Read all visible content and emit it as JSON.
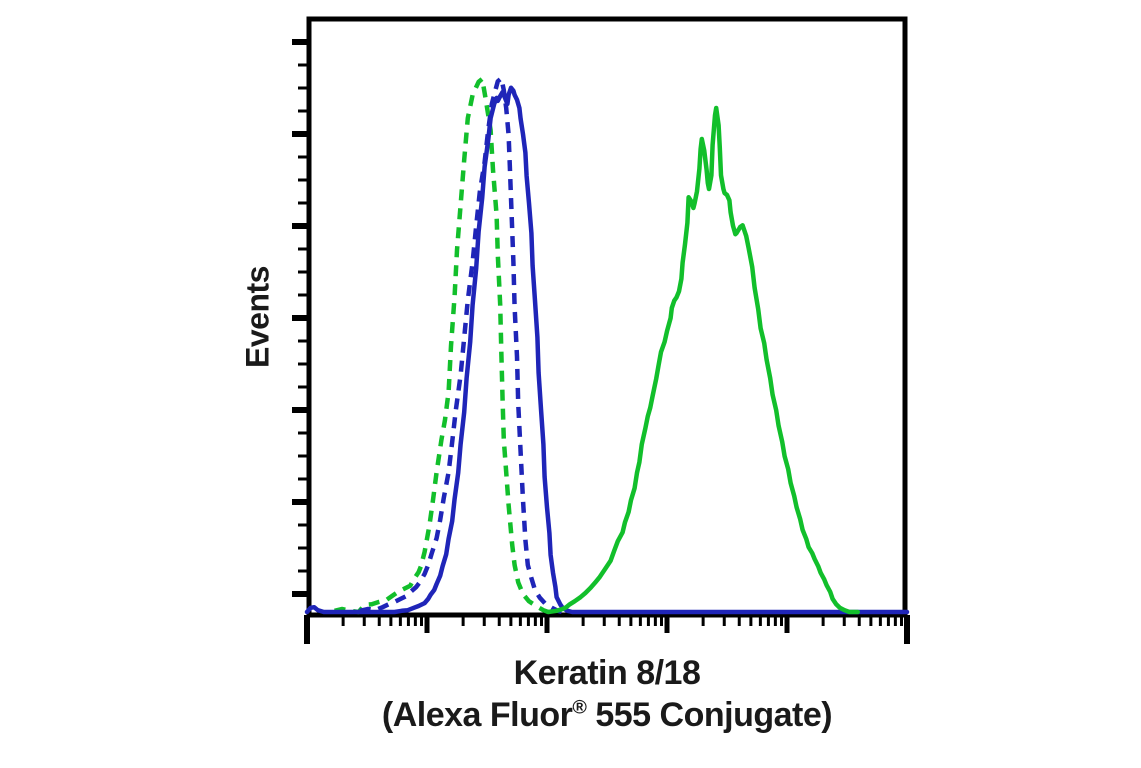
{
  "figure": {
    "y_axis_label": "Events",
    "title_line1": "Keratin 8/18",
    "title_line2_pre": "(Alexa Fluor",
    "title_line2_sup": "®",
    "title_line2_post": " 555 Conjugate)"
  },
  "colors": {
    "green": "#12bf2b",
    "blue": "#1f25b8",
    "axis": "#000000",
    "background": "#ffffff",
    "text": "#1a1a1a"
  },
  "chart_data": {
    "type": "line",
    "subtype": "flow-cytometry-histogram",
    "title": "Keratin 8/18 (Alexa Fluor® 555 Conjugate)",
    "xlabel": "Keratin 8/18 (Alexa Fluor® 555 Conjugate)",
    "ylabel": "Events",
    "legend": "none",
    "grid": false,
    "x_axis": {
      "scale": "log",
      "decades": 5,
      "tick_labels": "none",
      "minor_log_positions": [
        2,
        3,
        4,
        5,
        6,
        7,
        8,
        9
      ]
    },
    "y_axis": {
      "scale": "linear",
      "tick_labels": "none",
      "major_ticks": 7,
      "minors_between": 3,
      "range_fraction": [
        0,
        1
      ]
    },
    "series": [
      {
        "id": "green-dashed",
        "label": "green dashed histogram (control)",
        "color": "green",
        "line": "dashed",
        "peak": {
          "x_decade": 1.46,
          "height_fraction": 0.896
        },
        "points": [
          [
            0.23,
            0.002
          ],
          [
            0.29,
            0.005
          ],
          [
            0.36,
            0.002
          ],
          [
            0.43,
            0
          ],
          [
            0.48,
            0.012
          ],
          [
            0.54,
            0.013
          ],
          [
            0.6,
            0.017
          ],
          [
            0.66,
            0.02
          ],
          [
            0.71,
            0.027
          ],
          [
            0.76,
            0.034
          ],
          [
            0.81,
            0.039
          ],
          [
            0.86,
            0.044
          ],
          [
            0.89,
            0.055
          ],
          [
            0.93,
            0.067
          ],
          [
            0.95,
            0.077
          ],
          [
            0.98,
            0.101
          ],
          [
            1.02,
            0.145
          ],
          [
            1.05,
            0.188
          ],
          [
            1.08,
            0.235
          ],
          [
            1.12,
            0.289
          ],
          [
            1.15,
            0.323
          ],
          [
            1.18,
            0.37
          ],
          [
            1.2,
            0.447
          ],
          [
            1.23,
            0.531
          ],
          [
            1.25,
            0.608
          ],
          [
            1.28,
            0.684
          ],
          [
            1.31,
            0.76
          ],
          [
            1.34,
            0.83
          ],
          [
            1.38,
            0.869
          ],
          [
            1.43,
            0.891
          ],
          [
            1.46,
            0.896
          ],
          [
            1.49,
            0.861
          ],
          [
            1.53,
            0.81
          ],
          [
            1.55,
            0.743
          ],
          [
            1.58,
            0.667
          ],
          [
            1.59,
            0.6
          ],
          [
            1.61,
            0.516
          ],
          [
            1.62,
            0.432
          ],
          [
            1.63,
            0.356
          ],
          [
            1.64,
            0.289
          ],
          [
            1.66,
            0.235
          ],
          [
            1.68,
            0.18
          ],
          [
            1.71,
            0.113
          ],
          [
            1.73,
            0.079
          ],
          [
            1.76,
            0.05
          ],
          [
            1.8,
            0.03
          ],
          [
            1.85,
            0.018
          ],
          [
            1.91,
            0.01
          ],
          [
            1.97,
            0.003
          ],
          [
            2.01,
            0
          ]
        ]
      },
      {
        "id": "blue-dashed",
        "label": "blue dashed histogram (control)",
        "color": "blue",
        "line": "dashed",
        "peak": {
          "x_decade": 1.62,
          "height_fraction": 0.897
        },
        "points": [
          [
            0.44,
            0.002
          ],
          [
            0.51,
            0.005
          ],
          [
            0.57,
            0.003
          ],
          [
            0.63,
            0.008
          ],
          [
            0.68,
            0.013
          ],
          [
            0.73,
            0.017
          ],
          [
            0.78,
            0.022
          ],
          [
            0.83,
            0.027
          ],
          [
            0.87,
            0.035
          ],
          [
            0.91,
            0.042
          ],
          [
            0.94,
            0.05
          ],
          [
            0.98,
            0.064
          ],
          [
            1.01,
            0.079
          ],
          [
            1.04,
            0.099
          ],
          [
            1.08,
            0.124
          ],
          [
            1.11,
            0.155
          ],
          [
            1.14,
            0.192
          ],
          [
            1.18,
            0.235
          ],
          [
            1.21,
            0.286
          ],
          [
            1.24,
            0.339
          ],
          [
            1.28,
            0.398
          ],
          [
            1.31,
            0.461
          ],
          [
            1.34,
            0.524
          ],
          [
            1.38,
            0.588
          ],
          [
            1.41,
            0.649
          ],
          [
            1.44,
            0.706
          ],
          [
            1.48,
            0.756
          ],
          [
            1.51,
            0.81
          ],
          [
            1.54,
            0.854
          ],
          [
            1.57,
            0.877
          ],
          [
            1.59,
            0.892
          ],
          [
            1.62,
            0.897
          ],
          [
            1.64,
            0.877
          ],
          [
            1.66,
            0.847
          ],
          [
            1.68,
            0.802
          ],
          [
            1.69,
            0.751
          ],
          [
            1.7,
            0.696
          ],
          [
            1.71,
            0.642
          ],
          [
            1.72,
            0.588
          ],
          [
            1.73,
            0.513
          ],
          [
            1.75,
            0.429
          ],
          [
            1.76,
            0.351
          ],
          [
            1.78,
            0.269
          ],
          [
            1.8,
            0.188
          ],
          [
            1.82,
            0.121
          ],
          [
            1.84,
            0.079
          ],
          [
            1.87,
            0.057
          ],
          [
            1.9,
            0.037
          ],
          [
            1.94,
            0.024
          ],
          [
            1.99,
            0.013
          ],
          [
            2.04,
            0.007
          ],
          [
            2.09,
            0.002
          ],
          [
            2.13,
            0
          ]
        ]
      },
      {
        "id": "blue-solid",
        "label": "blue solid histogram (negative population, includes baseline)",
        "color": "blue",
        "line": "solid",
        "peak": {
          "x_decade": 1.7,
          "height_fraction": 0.881
        },
        "points": [
          [
            0,
            0
          ],
          [
            0.03,
            0.007
          ],
          [
            0.06,
            0.008
          ],
          [
            0.09,
            0.003
          ],
          [
            0.14,
            0
          ],
          [
            0.61,
            0
          ],
          [
            0.73,
            0
          ],
          [
            0.79,
            0.002
          ],
          [
            0.84,
            0.003
          ],
          [
            0.89,
            0.007
          ],
          [
            0.93,
            0.01
          ],
          [
            0.98,
            0.015
          ],
          [
            1.01,
            0.022
          ],
          [
            1.03,
            0.029
          ],
          [
            1.06,
            0.037
          ],
          [
            1.08,
            0.047
          ],
          [
            1.11,
            0.061
          ],
          [
            1.13,
            0.077
          ],
          [
            1.16,
            0.097
          ],
          [
            1.18,
            0.123
          ],
          [
            1.21,
            0.153
          ],
          [
            1.23,
            0.19
          ],
          [
            1.26,
            0.234
          ],
          [
            1.28,
            0.282
          ],
          [
            1.31,
            0.336
          ],
          [
            1.33,
            0.393
          ],
          [
            1.36,
            0.454
          ],
          [
            1.38,
            0.516
          ],
          [
            1.41,
            0.578
          ],
          [
            1.43,
            0.639
          ],
          [
            1.46,
            0.696
          ],
          [
            1.48,
            0.748
          ],
          [
            1.51,
            0.793
          ],
          [
            1.53,
            0.83
          ],
          [
            1.56,
            0.854
          ],
          [
            1.58,
            0.864
          ],
          [
            1.59,
            0.859
          ],
          [
            1.61,
            0.867
          ],
          [
            1.63,
            0.874
          ],
          [
            1.65,
            0.864
          ],
          [
            1.67,
            0.854
          ],
          [
            1.68,
            0.869
          ],
          [
            1.7,
            0.881
          ],
          [
            1.72,
            0.876
          ],
          [
            1.73,
            0.869
          ],
          [
            1.75,
            0.861
          ],
          [
            1.77,
            0.847
          ],
          [
            1.78,
            0.829
          ],
          [
            1.8,
            0.803
          ],
          [
            1.82,
            0.772
          ],
          [
            1.83,
            0.733
          ],
          [
            1.85,
            0.687
          ],
          [
            1.87,
            0.637
          ],
          [
            1.88,
            0.582
          ],
          [
            1.9,
            0.523
          ],
          [
            1.92,
            0.462
          ],
          [
            1.93,
            0.402
          ],
          [
            1.95,
            0.341
          ],
          [
            1.97,
            0.282
          ],
          [
            1.98,
            0.227
          ],
          [
            2.0,
            0.176
          ],
          [
            2.02,
            0.133
          ],
          [
            2.03,
            0.096
          ],
          [
            2.05,
            0.066
          ],
          [
            2.07,
            0.042
          ],
          [
            2.08,
            0.025
          ],
          [
            2.11,
            0.013
          ],
          [
            2.13,
            0.007
          ],
          [
            2.17,
            0.002
          ],
          [
            2.21,
            0
          ],
          [
            3.28,
            0
          ],
          [
            4.53,
            0
          ],
          [
            5.0,
            0
          ]
        ]
      },
      {
        "id": "green-solid",
        "label": "green solid histogram (positive population)",
        "color": "green",
        "line": "solid",
        "peak": {
          "x_decade": 3.41,
          "height_fraction": 0.847
        },
        "points": [
          [
            2.01,
            0
          ],
          [
            2.08,
            0.002
          ],
          [
            2.13,
            0.005
          ],
          [
            2.16,
            0.008
          ],
          [
            2.19,
            0.013
          ],
          [
            2.23,
            0.018
          ],
          [
            2.28,
            0.025
          ],
          [
            2.32,
            0.032
          ],
          [
            2.36,
            0.04
          ],
          [
            2.4,
            0.049
          ],
          [
            2.44,
            0.059
          ],
          [
            2.48,
            0.071
          ],
          [
            2.53,
            0.086
          ],
          [
            2.56,
            0.103
          ],
          [
            2.59,
            0.119
          ],
          [
            2.63,
            0.134
          ],
          [
            2.65,
            0.151
          ],
          [
            2.68,
            0.168
          ],
          [
            2.7,
            0.188
          ],
          [
            2.73,
            0.208
          ],
          [
            2.75,
            0.234
          ],
          [
            2.77,
            0.252
          ],
          [
            2.79,
            0.282
          ],
          [
            2.82,
            0.309
          ],
          [
            2.84,
            0.329
          ],
          [
            2.86,
            0.343
          ],
          [
            2.88,
            0.363
          ],
          [
            2.91,
            0.392
          ],
          [
            2.93,
            0.415
          ],
          [
            2.95,
            0.437
          ],
          [
            2.98,
            0.454
          ],
          [
            3.0,
            0.472
          ],
          [
            3.03,
            0.494
          ],
          [
            3.04,
            0.511
          ],
          [
            3.06,
            0.523
          ],
          [
            3.08,
            0.529
          ],
          [
            3.1,
            0.539
          ],
          [
            3.12,
            0.56
          ],
          [
            3.13,
            0.587
          ],
          [
            3.15,
            0.618
          ],
          [
            3.17,
            0.654
          ],
          [
            3.18,
            0.697
          ],
          [
            3.2,
            0.691
          ],
          [
            3.22,
            0.679
          ],
          [
            3.23,
            0.687
          ],
          [
            3.25,
            0.707
          ],
          [
            3.27,
            0.745
          ],
          [
            3.28,
            0.778
          ],
          [
            3.29,
            0.795
          ],
          [
            3.31,
            0.776
          ],
          [
            3.33,
            0.743
          ],
          [
            3.34,
            0.721
          ],
          [
            3.35,
            0.711
          ],
          [
            3.37,
            0.734
          ],
          [
            3.38,
            0.785
          ],
          [
            3.4,
            0.835
          ],
          [
            3.41,
            0.847
          ],
          [
            3.43,
            0.818
          ],
          [
            3.44,
            0.78
          ],
          [
            3.45,
            0.734
          ],
          [
            3.47,
            0.711
          ],
          [
            3.48,
            0.704
          ],
          [
            3.5,
            0.701
          ],
          [
            3.52,
            0.692
          ],
          [
            3.53,
            0.672
          ],
          [
            3.55,
            0.649
          ],
          [
            3.57,
            0.635
          ],
          [
            3.58,
            0.637
          ],
          [
            3.61,
            0.647
          ],
          [
            3.63,
            0.65
          ],
          [
            3.64,
            0.644
          ],
          [
            3.66,
            0.632
          ],
          [
            3.68,
            0.612
          ],
          [
            3.71,
            0.58
          ],
          [
            3.73,
            0.545
          ],
          [
            3.76,
            0.509
          ],
          [
            3.78,
            0.477
          ],
          [
            3.81,
            0.452
          ],
          [
            3.83,
            0.424
          ],
          [
            3.86,
            0.393
          ],
          [
            3.88,
            0.365
          ],
          [
            3.91,
            0.339
          ],
          [
            3.93,
            0.313
          ],
          [
            3.96,
            0.286
          ],
          [
            3.98,
            0.262
          ],
          [
            4.01,
            0.24
          ],
          [
            4.03,
            0.217
          ],
          [
            4.06,
            0.195
          ],
          [
            4.08,
            0.176
          ],
          [
            4.11,
            0.156
          ],
          [
            4.13,
            0.138
          ],
          [
            4.16,
            0.123
          ],
          [
            4.18,
            0.109
          ],
          [
            4.21,
            0.099
          ],
          [
            4.23,
            0.089
          ],
          [
            4.26,
            0.077
          ],
          [
            4.28,
            0.066
          ],
          [
            4.31,
            0.055
          ],
          [
            4.33,
            0.045
          ],
          [
            4.36,
            0.034
          ],
          [
            4.38,
            0.022
          ],
          [
            4.41,
            0.013
          ],
          [
            4.44,
            0.007
          ],
          [
            4.48,
            0.003
          ],
          [
            4.52,
            0
          ],
          [
            4.59,
            0
          ]
        ]
      }
    ]
  }
}
